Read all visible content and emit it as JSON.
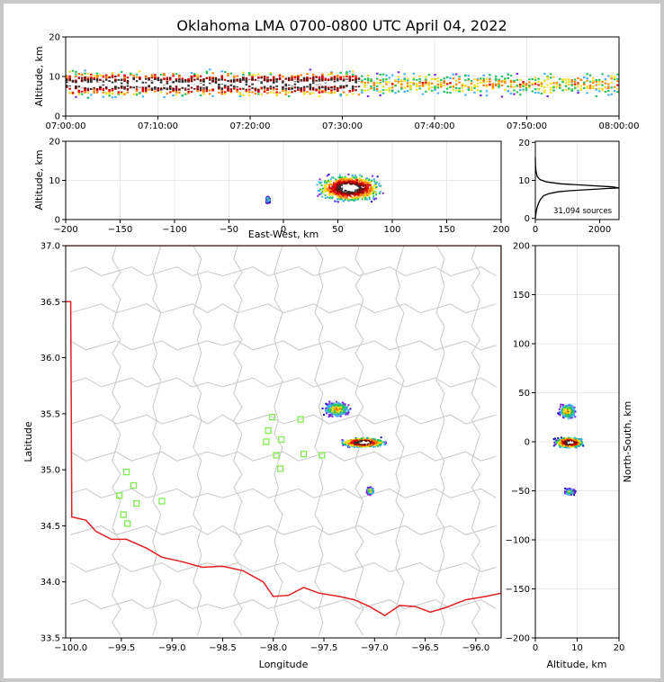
{
  "title": "Oklahoma LMA 0700-0800 UTC April 04, 2022",
  "colors": {
    "state_border": "#e02020",
    "county_lines": "#c8c8c8",
    "station_marker": "#80ee50",
    "grid": "#e8e8e8",
    "density_scale": [
      "#1010c0",
      "#7a20e0",
      "#40b0ff",
      "#20c060",
      "#f0e020",
      "#ff8000",
      "#e00000",
      "#800000",
      "#303030",
      "#ffffff"
    ]
  },
  "panels": {
    "time_altitude": {
      "ylabel": "Altitude, km",
      "y_ticks": [
        "0",
        "10",
        "20"
      ],
      "x_ticks": [
        "07:00:00",
        "07:10:00",
        "07:20:00",
        "07:30:00",
        "07:40:00",
        "07:50:00",
        "08:00:00"
      ]
    },
    "ew_altitude": {
      "ylabel": "Altitude, km",
      "xlabel": "East-West, km",
      "y_ticks": [
        "0",
        "10",
        "20"
      ],
      "x_ticks": [
        "−200",
        "−150",
        "−100",
        "−50",
        "0",
        "50",
        "100",
        "150",
        "200"
      ]
    },
    "alt_histogram": {
      "y_ticks": [
        "0",
        "10",
        "20"
      ],
      "x_ticks": [
        "0",
        "2000"
      ],
      "annotation": "31,094 sources"
    },
    "plan_view": {
      "xlabel": "Longitude",
      "ylabel": "Latitude",
      "x_ticks": [
        "−100.0",
        "−99.5",
        "−99.0",
        "−98.5",
        "−98.0",
        "−97.5",
        "−97.0",
        "−96.5",
        "−96.0"
      ],
      "y_ticks": [
        "37.0",
        "36.5",
        "36.0",
        "35.5",
        "35.0",
        "34.5",
        "34.0",
        "33.5"
      ]
    },
    "ns_altitude": {
      "xlabel": "Altitude, km",
      "ylabel": "North-South, km",
      "x_ticks": [
        "0",
        "10",
        "20"
      ],
      "y_ticks": [
        "200",
        "150",
        "100",
        "50",
        "0",
        "−50",
        "−100",
        "−150",
        "−200"
      ]
    }
  },
  "chart_data": [
    {
      "type": "heatmap",
      "title": "Oklahoma LMA 0700-0800 UTC April 04, 2022",
      "xlabel": "",
      "ylabel": "Altitude, km",
      "xlim": [
        "07:00:00",
        "08:00:00"
      ],
      "ylim": [
        0,
        20
      ],
      "description_values": {
        "core_altitude_km": 8,
        "core_spread_km": 2.5,
        "dense_until_min": 32,
        "sparser_after_min": 32
      }
    },
    {
      "type": "heatmap",
      "xlabel": "East-West, km",
      "ylabel": "Altitude, km",
      "xlim": [
        -200,
        200
      ],
      "ylim": [
        0,
        20
      ],
      "clusters": [
        {
          "x_center": 60,
          "x_halfwidth": 35,
          "z_center": 8,
          "z_halfwidth": 4,
          "intensity": 1.0
        },
        {
          "x_center": -15,
          "x_halfwidth": 2,
          "z_center": 5,
          "z_halfwidth": 1,
          "intensity": 0.4
        }
      ]
    },
    {
      "type": "line",
      "xlabel": "",
      "ylabel": "",
      "xlim": [
        0,
        2600
      ],
      "ylim": [
        0,
        20
      ],
      "x": [
        0,
        30,
        60,
        100,
        160,
        260,
        420,
        700,
        1100,
        1700,
        2300,
        2600,
        2400,
        1600,
        800,
        350,
        150,
        60,
        20,
        5,
        0
      ],
      "y": [
        0,
        2,
        3,
        4,
        5,
        6,
        6.5,
        7,
        7.3,
        7.6,
        7.9,
        8,
        8.3,
        8.7,
        9.1,
        9.6,
        10.2,
        11,
        12.5,
        14,
        16
      ]
    },
    {
      "type": "heatmap",
      "xlabel": "Longitude",
      "ylabel": "Latitude",
      "xlim": [
        -100.05,
        -95.75
      ],
      "ylim": [
        33.5,
        37.0
      ],
      "clusters": [
        {
          "lon": -97.12,
          "lat": 35.25,
          "lon_halfwidth": 0.25,
          "lat_halfwidth": 0.05,
          "intensity": 1.0
        },
        {
          "lon": -97.38,
          "lat": 35.55,
          "lon_halfwidth": 0.15,
          "lat_halfwidth": 0.08,
          "intensity": 0.5
        },
        {
          "lon": -97.05,
          "lat": 34.82,
          "lon_halfwidth": 0.04,
          "lat_halfwidth": 0.04,
          "intensity": 0.45
        }
      ],
      "stations": [
        {
          "lon": -98.01,
          "lat": 35.47
        },
        {
          "lon": -97.73,
          "lat": 35.45
        },
        {
          "lon": -98.05,
          "lat": 35.35
        },
        {
          "lon": -98.07,
          "lat": 35.25
        },
        {
          "lon": -97.92,
          "lat": 35.27
        },
        {
          "lon": -97.97,
          "lat": 35.13
        },
        {
          "lon": -97.93,
          "lat": 35.01
        },
        {
          "lon": -97.7,
          "lat": 35.14
        },
        {
          "lon": -97.52,
          "lat": 35.13
        },
        {
          "lon": -99.45,
          "lat": 34.98
        },
        {
          "lon": -99.38,
          "lat": 34.86
        },
        {
          "lon": -99.52,
          "lat": 34.77
        },
        {
          "lon": -99.35,
          "lat": 34.7
        },
        {
          "lon": -99.48,
          "lat": 34.6
        },
        {
          "lon": -99.44,
          "lat": 34.52
        },
        {
          "lon": -99.1,
          "lat": 34.72
        }
      ]
    },
    {
      "type": "heatmap",
      "xlabel": "Altitude, km",
      "ylabel": "North-South, km",
      "xlim": [
        0,
        20
      ],
      "ylim": [
        -200,
        200
      ],
      "clusters": [
        {
          "z_center": 8,
          "z_halfwidth": 4,
          "y_center": 0,
          "y_halfwidth": 6,
          "intensity": 1.0
        },
        {
          "z_center": 7.5,
          "z_halfwidth": 2.5,
          "y_center": 32,
          "y_halfwidth": 9,
          "intensity": 0.5
        },
        {
          "z_center": 8,
          "z_halfwidth": 1.5,
          "y_center": -50,
          "y_halfwidth": 4,
          "intensity": 0.4
        }
      ]
    }
  ]
}
